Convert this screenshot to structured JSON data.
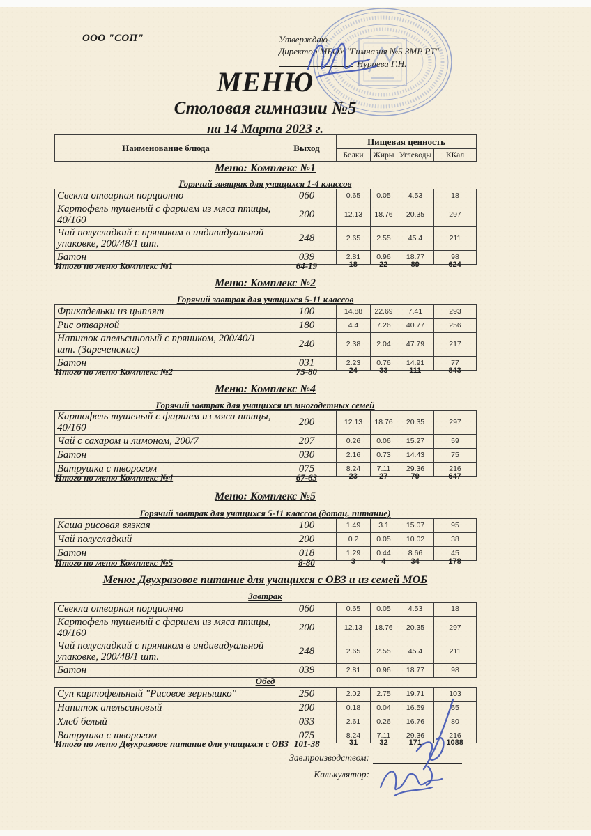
{
  "header": {
    "org_name": "ООО \"СОП\"",
    "approval": {
      "approve_label": "Утверждаю",
      "director_line": "Директор МБОУ \"Гимназия №5 ЗМР РТ\"",
      "director_name": "Нуриева Г.Н."
    },
    "title": "МЕНЮ",
    "subtitle": "Столовая гимназии №5",
    "date_line": "на 14 Марта 2023 г."
  },
  "table_header": {
    "name_col": "Наименование блюда",
    "out_col": "Выход",
    "nutrition": "Пищевая ценность",
    "sub_cols": [
      "Белки",
      "Жиры",
      "Углеводы",
      "ККал"
    ]
  },
  "sections": [
    {
      "title": "Меню: Комплекс №1",
      "groups": [
        {
          "subtitle": "Горячий завтрак для учащихся 1-4 классов",
          "rows": [
            {
              "name": "Свекла отварная порционно",
              "out": "060",
              "protein": "0.65",
              "fat": "0.05",
              "carbs": "4.53",
              "kcal": "18"
            },
            {
              "name": "Картофель тушеный с фаршем из мяса птицы, 40/160",
              "out": "200",
              "protein": "12.13",
              "fat": "18.76",
              "carbs": "20.35",
              "kcal": "297"
            },
            {
              "name": "Чай полусладкий с пряником в индивидуальной упаковке, 200/48/1 шт.",
              "out": "248",
              "protein": "2.65",
              "fat": "2.55",
              "carbs": "45.4",
              "kcal": "211"
            },
            {
              "name": "Батон",
              "out": "039",
              "protein": "2.81",
              "fat": "0.96",
              "carbs": "18.77",
              "kcal": "98"
            }
          ]
        }
      ],
      "total": {
        "label": "Итого по меню Комплекс №1",
        "out": "64-19",
        "values": [
          "18",
          "22",
          "89",
          "624"
        ]
      }
    },
    {
      "title": "Меню: Комплекс №2",
      "groups": [
        {
          "subtitle": "Горячий завтрак для учащихся 5-11 классов",
          "rows": [
            {
              "name": "Фрикадельки из цыплят",
              "out": "100",
              "protein": "14.88",
              "fat": "22.69",
              "carbs": "7.41",
              "kcal": "293"
            },
            {
              "name": "Рис отварной",
              "out": "180",
              "protein": "4.4",
              "fat": "7.26",
              "carbs": "40.77",
              "kcal": "256"
            },
            {
              "name": "Напиток апельсиновый с пряником, 200/40/1 шт. (Зареченские)",
              "out": "240",
              "protein": "2.38",
              "fat": "2.04",
              "carbs": "47.79",
              "kcal": "217"
            },
            {
              "name": "Батон",
              "out": "031",
              "protein": "2.23",
              "fat": "0.76",
              "carbs": "14.91",
              "kcal": "77"
            }
          ]
        }
      ],
      "total": {
        "label": "Итого по меню Комплекс №2",
        "out": "75-80",
        "values": [
          "24",
          "33",
          "111",
          "843"
        ]
      }
    },
    {
      "title": "Меню: Комплекс №4",
      "groups": [
        {
          "subtitle": "Горячий завтрак для учащихся из многодетных семей",
          "rows": [
            {
              "name": "Картофель тушеный с фаршем из мяса птицы, 40/160",
              "out": "200",
              "protein": "12.13",
              "fat": "18.76",
              "carbs": "20.35",
              "kcal": "297"
            },
            {
              "name": "Чай с сахаром и лимоном, 200/7",
              "out": "207",
              "protein": "0.26",
              "fat": "0.06",
              "carbs": "15.27",
              "kcal": "59"
            },
            {
              "name": "Батон",
              "out": "030",
              "protein": "2.16",
              "fat": "0.73",
              "carbs": "14.43",
              "kcal": "75"
            },
            {
              "name": "Ватрушка с творогом",
              "out": "075",
              "protein": "8.24",
              "fat": "7.11",
              "carbs": "29.36",
              "kcal": "216"
            }
          ]
        }
      ],
      "total": {
        "label": "Итого по меню Комплекс №4",
        "out": "67-63",
        "values": [
          "23",
          "27",
          "79",
          "647"
        ]
      }
    },
    {
      "title": "Меню: Комплекс №5",
      "groups": [
        {
          "subtitle": "Горячий завтрак для учащихся 5-11 классов (дотац. питание)",
          "rows": [
            {
              "name": "Каша рисовая вязкая",
              "out": "100",
              "protein": "1.49",
              "fat": "3.1",
              "carbs": "15.07",
              "kcal": "95"
            },
            {
              "name": "Чай полусладкий",
              "out": "200",
              "protein": "0.2",
              "fat": "0.05",
              "carbs": "10.02",
              "kcal": "38"
            },
            {
              "name": "Батон",
              "out": "018",
              "protein": "1.29",
              "fat": "0.44",
              "carbs": "8.66",
              "kcal": "45"
            }
          ]
        }
      ],
      "total": {
        "label": "Итого по меню Комплекс №5",
        "out": "8-80",
        "values": [
          "3",
          "4",
          "34",
          "178"
        ]
      }
    },
    {
      "title": "Меню: Двухразовое питание для учащихся с ОВЗ и из семей МОБ",
      "groups": [
        {
          "subtitle": "Завтрак",
          "rows": [
            {
              "name": "Свекла отварная порционно",
              "out": "060",
              "protein": "0.65",
              "fat": "0.05",
              "carbs": "4.53",
              "kcal": "18"
            },
            {
              "name": "Картофель тушеный с фаршем из мяса птицы, 40/160",
              "out": "200",
              "protein": "12.13",
              "fat": "18.76",
              "carbs": "20.35",
              "kcal": "297"
            },
            {
              "name": "Чай полусладкий с пряником в индивидуальной упаковке, 200/48/1 шт.",
              "out": "248",
              "protein": "2.65",
              "fat": "2.55",
              "carbs": "45.4",
              "kcal": "211"
            },
            {
              "name": "Батон",
              "out": "039",
              "protein": "2.81",
              "fat": "0.96",
              "carbs": "18.77",
              "kcal": "98"
            }
          ]
        },
        {
          "subtitle": "Обед",
          "rows": [
            {
              "name": "Суп картофельный \"Рисовое зернышко\"",
              "out": "250",
              "protein": "2.02",
              "fat": "2.75",
              "carbs": "19.71",
              "kcal": "103"
            },
            {
              "name": "Напиток апельсиновый",
              "out": "200",
              "protein": "0.18",
              "fat": "0.04",
              "carbs": "16.59",
              "kcal": "65"
            },
            {
              "name": "Хлеб белый",
              "out": "033",
              "protein": "2.61",
              "fat": "0.26",
              "carbs": "16.76",
              "kcal": "80"
            },
            {
              "name": "Ватрушка с творогом",
              "out": "075",
              "protein": "8.24",
              "fat": "7.11",
              "carbs": "29.36",
              "kcal": "216"
            }
          ]
        }
      ],
      "total": {
        "label": "Итого по меню Двухразовое питание для учащихся с ОВЗ",
        "out": "101-38",
        "values": [
          "31",
          "32",
          "171",
          "1088"
        ]
      }
    }
  ],
  "footer": {
    "zav_label": "Зав.производством:",
    "calc_label": "Калькулятор:"
  },
  "colors": {
    "paper": "#f5eedc",
    "ink": "#1b1b1b",
    "table_border": "#3d3d3d",
    "stamp_blue": "#7e91c6",
    "pen_blue": "#3f55b5"
  }
}
